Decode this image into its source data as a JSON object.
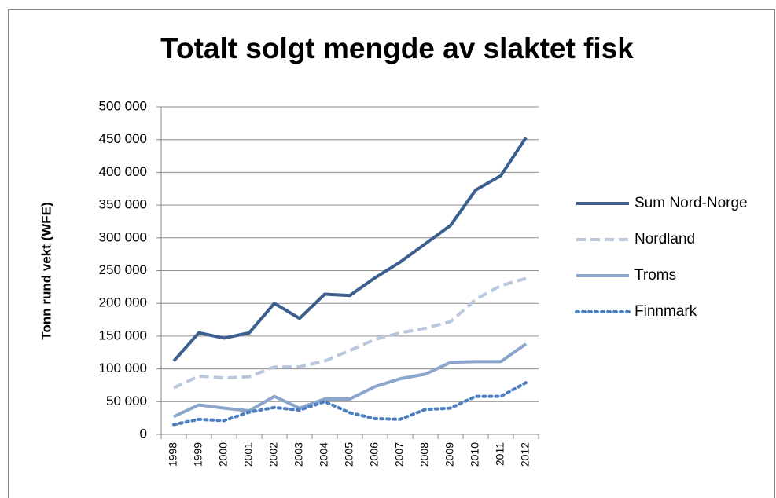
{
  "chart_data": {
    "type": "line",
    "title": "Totalt solgt mengde av slaktet fisk",
    "y_label": "Tonn rund vekt (WFE)",
    "categories": [
      "1998",
      "1999",
      "2000",
      "2001",
      "2002",
      "2003",
      "2004",
      "2005",
      "2006",
      "2007",
      "2008",
      "2009",
      "2010",
      "2011",
      "2012"
    ],
    "series": [
      {
        "name": "Sum Nord-Norge",
        "color": "#3b5f8e",
        "style": "solid",
        "values": [
          112000,
          155000,
          147000,
          155000,
          200000,
          177000,
          214000,
          212000,
          239000,
          263000,
          291000,
          319000,
          373000,
          395000,
          453000
        ]
      },
      {
        "name": "Nordland",
        "color": "#b9c8dd",
        "style": "dashed",
        "values": [
          71000,
          89000,
          86000,
          88000,
          103000,
          103000,
          112000,
          128000,
          145000,
          155000,
          162000,
          172000,
          206000,
          227000,
          238000
        ]
      },
      {
        "name": "Troms",
        "color": "#8ba6cd",
        "style": "solid",
        "values": [
          27000,
          45000,
          40000,
          36000,
          58000,
          40000,
          54000,
          54000,
          73000,
          85000,
          92000,
          110000,
          111000,
          111000,
          138000
        ]
      },
      {
        "name": "Finnmark",
        "color": "#4d7ebf",
        "style": "dotted",
        "values": [
          15000,
          23000,
          21000,
          34000,
          41000,
          37000,
          50000,
          33000,
          24000,
          23000,
          38000,
          40000,
          58000,
          58000,
          79000
        ]
      }
    ],
    "ylim": [
      0,
      500000
    ],
    "yticks": [
      0,
      {
        "value": 50000,
        "label": "50 000"
      },
      {
        "value": 100000,
        "label": "100 000"
      },
      {
        "value": 150000,
        "label": "150 000"
      },
      {
        "value": 200000,
        "label": "200 000"
      },
      {
        "value": 250000,
        "label": "250 000"
      },
      {
        "value": 300000,
        "label": "300 000"
      },
      {
        "value": 350000,
        "label": "350 000"
      },
      {
        "value": 400000,
        "label": "400 000"
      },
      {
        "value": 450000,
        "label": "450 000"
      },
      {
        "value": 500000,
        "label": "500 000"
      }
    ],
    "grid": true,
    "legend": "right"
  }
}
